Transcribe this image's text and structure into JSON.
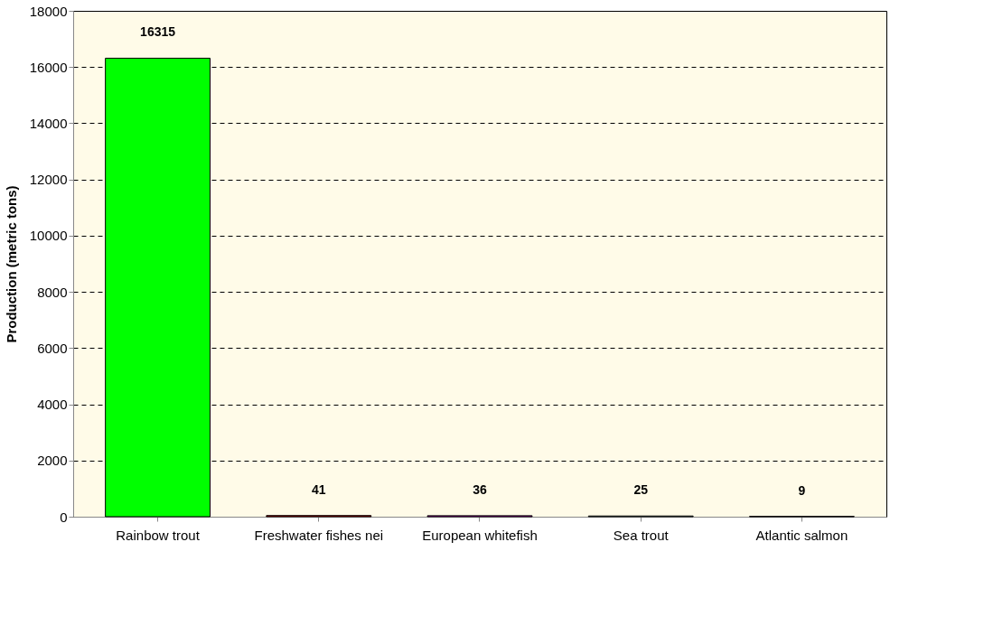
{
  "chart_data": {
    "type": "bar",
    "ylabel": "Production (metric tons)",
    "categories": [
      "Rainbow trout",
      "Freshwater fishes nei",
      "European whitefish",
      "Sea trout",
      "Atlantic salmon"
    ],
    "values": [
      16315,
      41,
      36,
      25,
      9
    ],
    "colors": [
      "#00ff00",
      "#c00000",
      "#c000c0",
      "#99c0c0",
      "#4c0047"
    ],
    "ylim": [
      0,
      18000
    ],
    "yticks": [
      0,
      2000,
      4000,
      6000,
      8000,
      10000,
      12000,
      14000,
      16000,
      18000
    ],
    "grid": "y",
    "data_labels": true,
    "legend": false
  }
}
